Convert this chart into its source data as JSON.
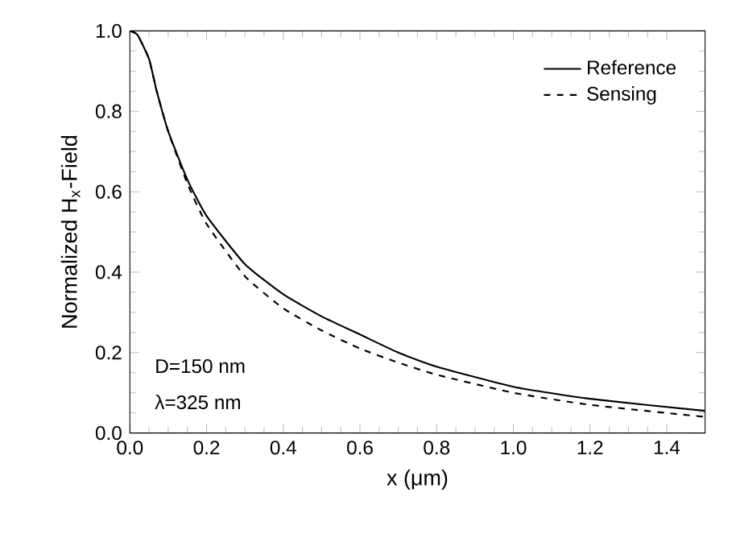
{
  "chart_data": {
    "type": "line",
    "xlabel": "x (μm)",
    "ylabel": "Normalized H$_{x}$-Field",
    "xlim": [
      0,
      1.5
    ],
    "ylim": [
      0,
      1
    ],
    "xticks": [
      {
        "value": 0,
        "label": "0.0"
      },
      0.2,
      0.4,
      0.6,
      0.8,
      {
        "value": 1,
        "label": "1.0"
      },
      1.2,
      1.4
    ],
    "yticks": [
      {
        "value": 0,
        "label": "0.0"
      },
      0.2,
      0.4,
      0.6,
      0.8,
      {
        "value": 1,
        "label": "1.0"
      }
    ],
    "legend": "top right",
    "grid": false,
    "annotations": [
      "D=150 nm",
      "λ=325 nm"
    ],
    "series": [
      {
        "name": "Reference",
        "color": "#000000",
        "line_style": "solid",
        "x": [
          0,
          0.02,
          0.05,
          0.07,
          0.1,
          0.15,
          0.2,
          0.3,
          0.4,
          0.5,
          0.6,
          0.7,
          0.8,
          1.0,
          1.2,
          1.5
        ],
        "values": [
          1.0,
          0.99,
          0.93,
          0.85,
          0.75,
          0.63,
          0.54,
          0.42,
          0.345,
          0.29,
          0.245,
          0.2,
          0.165,
          0.115,
          0.085,
          0.055
        ]
      },
      {
        "name": "Sensing",
        "color": "#000000",
        "line_style": "dashed",
        "x": [
          0,
          0.02,
          0.05,
          0.07,
          0.1,
          0.15,
          0.2,
          0.3,
          0.4,
          0.5,
          0.6,
          0.7,
          0.8,
          1.0,
          1.2,
          1.5
        ],
        "values": [
          1.0,
          0.99,
          0.93,
          0.85,
          0.75,
          0.62,
          0.52,
          0.39,
          0.31,
          0.255,
          0.21,
          0.175,
          0.145,
          0.1,
          0.07,
          0.04
        ]
      }
    ]
  }
}
